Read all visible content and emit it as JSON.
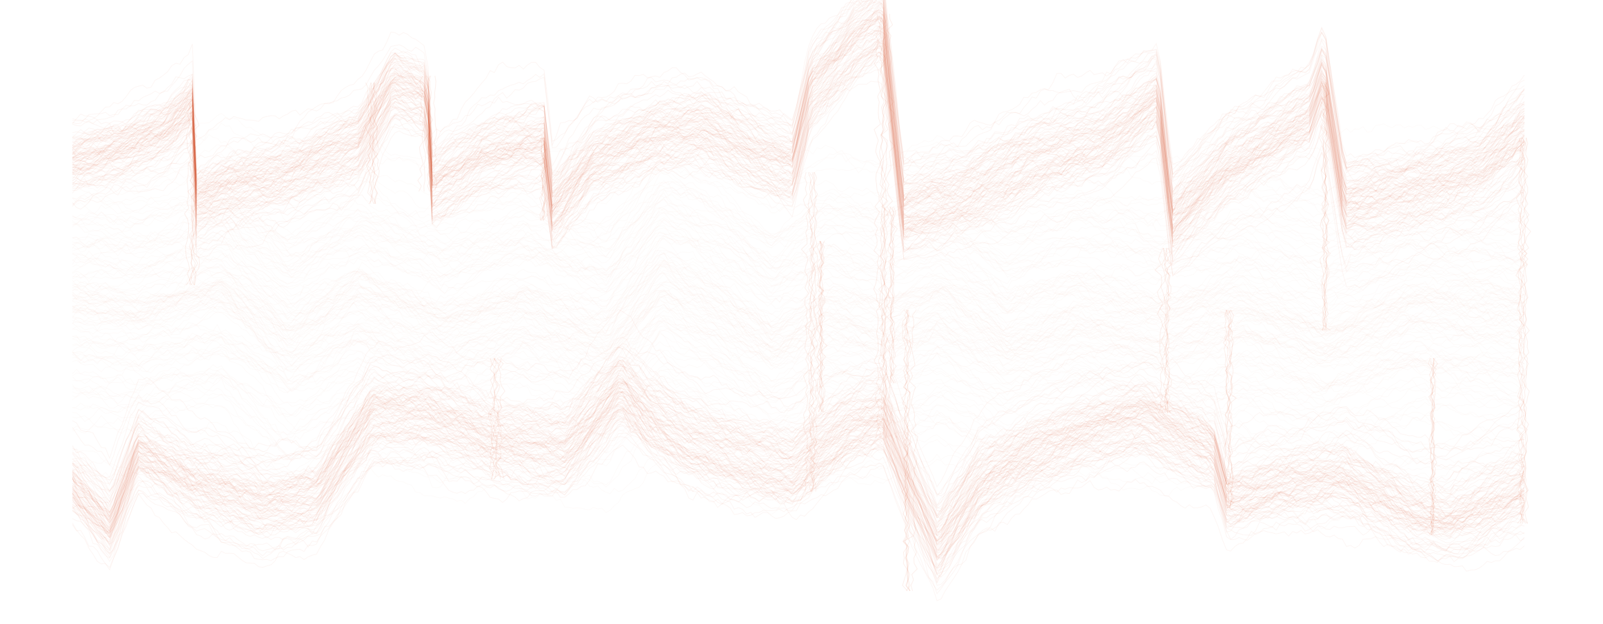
{
  "artwork": {
    "background_color": "#ffffff",
    "stroke_color": "#d9542b",
    "style": "translucent overlapping random-walk line texture",
    "orientation": "horizontal band"
  }
}
